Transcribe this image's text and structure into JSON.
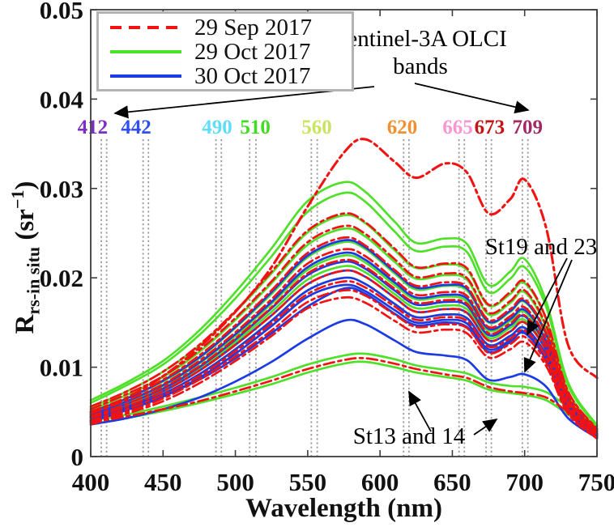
{
  "legend": {
    "items": [
      {
        "label": "29 Sep 2017",
        "color": "#f21212",
        "dash": true
      },
      {
        "label": "29 Oct 2017",
        "color": "#4fe02a",
        "dash": false
      },
      {
        "label": "30 Oct 2017",
        "color": "#1c3be4",
        "dash": false
      }
    ]
  },
  "annotations": {
    "sentinel_line1": "Sentinel-3A OLCI",
    "sentinel_line2": "bands",
    "st19": "St19 and 23",
    "st13": "St13 and 14"
  },
  "axes": {
    "xlabel": "Wavelength (nm)",
    "ylabel_parts": {
      "main": "R",
      "sub": "rs-in situ",
      "unit_pre": " (sr",
      "exp": "−1",
      "unit_post": ")"
    },
    "x_ticks": [
      400,
      450,
      500,
      550,
      600,
      650,
      700,
      750
    ],
    "y_ticks": [
      0,
      0.01,
      0.02,
      0.03,
      0.04,
      0.05
    ],
    "y_tick_labels": [
      "0",
      "0.01",
      "0.02",
      "0.03",
      "0.04",
      "0.05"
    ]
  },
  "chart_data": {
    "type": "line",
    "xlabel": "Wavelength (nm)",
    "ylabel": "Rrs-in situ (sr-1)",
    "xlim": [
      400,
      750
    ],
    "ylim": [
      0,
      0.05
    ],
    "grid": false,
    "legend_position": "top-left",
    "bands": [
      {
        "label": "412",
        "color": "#7a2fc0",
        "lines": [
          407.3,
          411.0
        ],
        "label_dx": -14
      },
      {
        "label": "442",
        "color": "#2d4ff0",
        "lines": [
          436.2,
          439.9
        ],
        "label_dx": -12
      },
      {
        "label": "490",
        "color": "#5fdcf8",
        "lines": [
          486.6,
          490.3
        ],
        "label_dx": -2
      },
      {
        "label": "510",
        "color": "#3fdc20",
        "lines": [
          509.9,
          514.2
        ],
        "label_dx": 3
      },
      {
        "label": "560",
        "color": "#c8e460",
        "lines": [
          552.5,
          556.6
        ],
        "label_dx": 3
      },
      {
        "label": "620",
        "color": "#f09030",
        "lines": [
          616.3,
          620.0
        ],
        "label_dx": -5
      },
      {
        "label": "665",
        "color": "#fb96d2",
        "lines": [
          654.6,
          658.3
        ],
        "label_dx": -5
      },
      {
        "label": "673",
        "color": "#c41414",
        "lines": [
          673.3,
          677.0
        ],
        "label_dx": 1
      },
      {
        "label": "709",
        "color": "#a12a66",
        "lines": [
          698.4,
          702.2
        ],
        "label_dx": 3
      }
    ],
    "wavelengths": [
      400,
      425,
      450,
      475,
      500,
      525,
      550,
      575,
      590,
      610,
      625,
      645,
      660,
      675,
      690,
      700,
      715,
      730,
      750
    ],
    "series": [
      {
        "name": "29 Oct 2017",
        "color": "#4fe02a",
        "style": "solid",
        "curves": [
          [
            0.0063,
            0.0083,
            0.0107,
            0.0141,
            0.0184,
            0.0233,
            0.0286,
            0.0307,
            0.0296,
            0.0263,
            0.0239,
            0.0244,
            0.0238,
            0.0192,
            0.0207,
            0.0221,
            0.0173,
            0.0083,
            0.0035
          ],
          [
            0.006,
            0.008,
            0.0103,
            0.0136,
            0.0177,
            0.0224,
            0.0274,
            0.0295,
            0.0285,
            0.0252,
            0.023,
            0.0235,
            0.0229,
            0.0184,
            0.0199,
            0.0212,
            0.0167,
            0.008,
            0.0034
          ],
          [
            0.0055,
            0.0073,
            0.0095,
            0.0124,
            0.0162,
            0.0205,
            0.0251,
            0.027,
            0.0261,
            0.0231,
            0.0211,
            0.0215,
            0.0209,
            0.0169,
            0.0182,
            0.0194,
            0.0153,
            0.0073,
            0.0031
          ],
          [
            0.0052,
            0.0069,
            0.0089,
            0.0117,
            0.0153,
            0.0194,
            0.0237,
            0.0255,
            0.0246,
            0.0218,
            0.0199,
            0.0203,
            0.0198,
            0.0159,
            0.0172,
            0.0184,
            0.0144,
            0.0069,
            0.0029
          ],
          [
            0.0049,
            0.0065,
            0.0084,
            0.011,
            0.0144,
            0.0182,
            0.0223,
            0.024,
            0.0232,
            0.0205,
            0.0187,
            0.0191,
            0.0186,
            0.015,
            0.0162,
            0.0173,
            0.0136,
            0.0065,
            0.0028
          ],
          [
            0.0046,
            0.0061,
            0.0079,
            0.0104,
            0.0135,
            0.0171,
            0.0209,
            0.0225,
            0.0217,
            0.0192,
            0.0176,
            0.0179,
            0.0174,
            0.0141,
            0.0152,
            0.0162,
            0.0127,
            0.0061,
            0.0026
          ],
          [
            0.0044,
            0.0058,
            0.0075,
            0.0098,
            0.0128,
            0.0162,
            0.0198,
            0.0213,
            0.0206,
            0.0182,
            0.0166,
            0.0169,
            0.0165,
            0.0133,
            0.0144,
            0.0153,
            0.012,
            0.0058,
            0.0024
          ],
          [
            0.0041,
            0.0054,
            0.007,
            0.0092,
            0.012,
            0.0152,
            0.0186,
            0.02,
            0.0193,
            0.0171,
            0.0156,
            0.0159,
            0.0155,
            0.0125,
            0.0135,
            0.0144,
            0.0113,
            0.0054,
            0.0023
          ],
          [
            0.004,
            0.0047,
            0.0056,
            0.0066,
            0.0077,
            0.0089,
            0.0103,
            0.0113,
            0.0115,
            0.0109,
            0.0102,
            0.0097,
            0.0093,
            0.0083,
            0.0079,
            0.0078,
            0.0072,
            0.0055,
            0.0031
          ],
          [
            0.0036,
            0.0043,
            0.0051,
            0.006,
            0.007,
            0.0081,
            0.0094,
            0.0104,
            0.0106,
            0.01,
            0.0094,
            0.0089,
            0.0085,
            0.0075,
            0.0071,
            0.0069,
            0.0063,
            0.0047,
            0.0026
          ]
        ]
      },
      {
        "name": "30 Oct 2017",
        "color": "#1c3be4",
        "style": "solid",
        "curves": [
          [
            0.005,
            0.0065,
            0.0085,
            0.0111,
            0.0145,
            0.0184,
            0.0225,
            0.0242,
            0.0234,
            0.0207,
            0.0189,
            0.0192,
            0.0188,
            0.0151,
            0.0163,
            0.0174,
            0.0137,
            0.0065,
            0.0028
          ],
          [
            0.0047,
            0.0062,
            0.008,
            0.0105,
            0.0137,
            0.0173,
            0.0212,
            0.0228,
            0.022,
            0.0195,
            0.0178,
            0.0181,
            0.0177,
            0.0143,
            0.0154,
            0.0164,
            0.0129,
            0.0062,
            0.0026
          ],
          [
            0.0045,
            0.0059,
            0.0076,
            0.01,
            0.0131,
            0.0166,
            0.0203,
            0.0218,
            0.021,
            0.0186,
            0.017,
            0.0173,
            0.0169,
            0.0136,
            0.0147,
            0.0157,
            0.0123,
            0.0059,
            0.0025
          ],
          [
            0.0043,
            0.0056,
            0.0073,
            0.0096,
            0.0125,
            0.0158,
            0.0193,
            0.0208,
            0.0201,
            0.0178,
            0.0162,
            0.0165,
            0.0161,
            0.013,
            0.014,
            0.015,
            0.0118,
            0.0056,
            0.0024
          ],
          [
            0.0041,
            0.0054,
            0.007,
            0.0092,
            0.012,
            0.0152,
            0.0186,
            0.02,
            0.0193,
            0.0171,
            0.0156,
            0.0159,
            0.0155,
            0.0125,
            0.0135,
            0.0144,
            0.0113,
            0.0054,
            0.0023
          ],
          [
            0.0039,
            0.0052,
            0.0067,
            0.0088,
            0.0115,
            0.0146,
            0.0179,
            0.0192,
            0.0185,
            0.0164,
            0.015,
            0.0153,
            0.0149,
            0.012,
            0.013,
            0.0138,
            0.0108,
            0.0052,
            0.0022
          ],
          [
            0.0044,
            0.0054,
            0.0068,
            0.0086,
            0.011,
            0.0138,
            0.0168,
            0.0188,
            0.0182,
            0.016,
            0.0147,
            0.015,
            0.0145,
            0.0117,
            0.0128,
            0.014,
            0.0112,
            0.0055,
            0.0026
          ],
          [
            0.0036,
            0.0043,
            0.0053,
            0.0066,
            0.0084,
            0.0106,
            0.0132,
            0.0152,
            0.0148,
            0.013,
            0.0117,
            0.0113,
            0.0108,
            0.0086,
            0.0089,
            0.0092,
            0.0078,
            0.0043,
            0.0021
          ]
        ]
      },
      {
        "name": "29 Sep 2017",
        "color": "#f21212",
        "style": "dash-dot",
        "curves": [
          [
            0.005,
            0.0066,
            0.009,
            0.0122,
            0.0162,
            0.0212,
            0.028,
            0.034,
            0.0355,
            0.033,
            0.0312,
            0.0328,
            0.0318,
            0.0272,
            0.0288,
            0.031,
            0.0255,
            0.0125,
            0.0088
          ],
          [
            0.0056,
            0.0073,
            0.0095,
            0.0125,
            0.0163,
            0.0207,
            0.0253,
            0.0272,
            0.0262,
            0.0233,
            0.0212,
            0.0216,
            0.0211,
            0.017,
            0.0184,
            0.0196,
            0.0154,
            0.0073,
            0.0031
          ],
          [
            0.0053,
            0.007,
            0.009,
            0.0119,
            0.0155,
            0.0196,
            0.024,
            0.0258,
            0.0249,
            0.0221,
            0.0201,
            0.0205,
            0.02,
            0.0161,
            0.0174,
            0.0186,
            0.0146,
            0.007,
            0.003
          ],
          [
            0.005,
            0.0066,
            0.0086,
            0.0113,
            0.0147,
            0.0186,
            0.0228,
            0.0245,
            0.0236,
            0.0209,
            0.0191,
            0.0195,
            0.019,
            0.0153,
            0.0165,
            0.0176,
            0.0138,
            0.0066,
            0.0028
          ],
          [
            0.0048,
            0.0063,
            0.0081,
            0.0107,
            0.0139,
            0.0176,
            0.0216,
            0.0232,
            0.0224,
            0.0198,
            0.0181,
            0.0184,
            0.018,
            0.0145,
            0.0157,
            0.0167,
            0.0131,
            0.0063,
            0.0027
          ],
          [
            0.0045,
            0.0059,
            0.0077,
            0.0101,
            0.0132,
            0.0167,
            0.0205,
            0.022,
            0.0212,
            0.0188,
            0.0172,
            0.0175,
            0.0171,
            0.0138,
            0.0149,
            0.0158,
            0.0124,
            0.0059,
            0.0025
          ],
          [
            0.0043,
            0.0056,
            0.0073,
            0.0096,
            0.0125,
            0.0158,
            0.0193,
            0.0208,
            0.0201,
            0.0178,
            0.0162,
            0.0165,
            0.0161,
            0.013,
            0.014,
            0.015,
            0.0118,
            0.0056,
            0.0024
          ],
          [
            0.004,
            0.0053,
            0.0069,
            0.009,
            0.0118,
            0.0149,
            0.0182,
            0.0196,
            0.0189,
            0.0168,
            0.0153,
            0.0156,
            0.0152,
            0.0123,
            0.0132,
            0.0141,
            0.0111,
            0.0053,
            0.0023
          ],
          [
            0.0038,
            0.005,
            0.0065,
            0.0086,
            0.0112,
            0.0141,
            0.0173,
            0.0186,
            0.018,
            0.0159,
            0.0145,
            0.0148,
            0.0144,
            0.0116,
            0.0126,
            0.0134,
            0.0105,
            0.005,
            0.0021
          ],
          [
            0.0036,
            0.0048,
            0.0062,
            0.0082,
            0.0107,
            0.0135,
            0.0166,
            0.0178,
            0.0172,
            0.0152,
            0.0139,
            0.0142,
            0.0138,
            0.0111,
            0.012,
            0.0128,
            0.0101,
            0.0048,
            0.002
          ],
          [
            0.0038,
            0.0045,
            0.0053,
            0.0062,
            0.0073,
            0.0085,
            0.0098,
            0.0108,
            0.011,
            0.0104,
            0.0098,
            0.0092,
            0.0088,
            0.0078,
            0.0073,
            0.0071,
            0.0066,
            0.005,
            0.0028
          ]
        ]
      }
    ],
    "arrows": [
      {
        "from": [
          462,
          107
        ],
        "to": [
          142,
          140
        ]
      },
      {
        "from": [
          512,
          103
        ],
        "to": [
          652,
          136
        ]
      },
      {
        "from": [
          700,
          319
        ],
        "to": [
          651,
          413
        ]
      },
      {
        "from": [
          706,
          321
        ],
        "to": [
          648,
          459
        ]
      },
      {
        "from": [
          532,
          533
        ],
        "to": [
          505,
          484
        ]
      },
      {
        "from": [
          585,
          537
        ],
        "to": [
          613,
          518
        ]
      }
    ]
  }
}
